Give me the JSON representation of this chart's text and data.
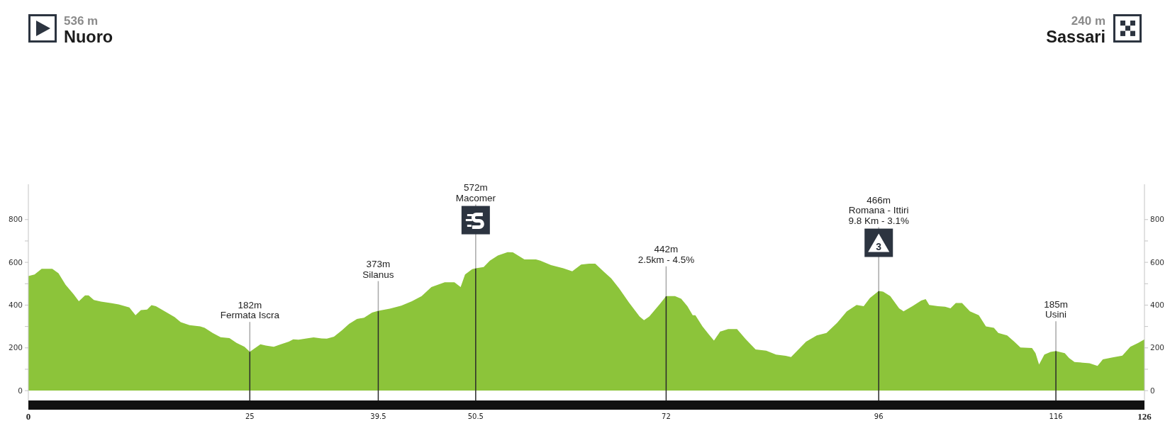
{
  "chart_data": {
    "type": "area",
    "x": [
      0,
      0.7,
      1.5,
      2.7,
      3.4,
      4.2,
      5.1,
      5.7,
      6.4,
      6.8,
      7.4,
      8.2,
      9.4,
      10.2,
      11.4,
      12.1,
      12.7,
      13.4,
      13.9,
      14.4,
      15.4,
      16.5,
      17.2,
      18.2,
      19.4,
      19.9,
      20.8,
      21.7,
      22.7,
      23.5,
      24.4,
      25,
      26.2,
      26.8,
      27.7,
      28.5,
      29.4,
      29.9,
      30.5,
      31.4,
      32.2,
      33.1,
      33.7,
      34.5,
      35.4,
      36.2,
      37.1,
      37.9,
      38.8,
      39.5,
      40.8,
      42.1,
      43.3,
      44.4,
      45.5,
      47,
      48.1,
      48.8,
      49.3,
      50.1,
      50.5,
      51.4,
      52.1,
      53,
      54.1,
      54.7,
      56,
      57.3,
      57.8,
      59,
      60.4,
      61.4,
      62.4,
      63.3,
      64,
      65,
      65.8,
      66.7,
      67.8,
      69,
      69.5,
      70.1,
      71.3,
      72,
      73,
      73.7,
      74.4,
      75,
      75.3,
      76.1,
      76.8,
      77.4,
      78.1,
      79,
      80,
      81,
      82.1,
      83.3,
      84.4,
      85.5,
      86.1,
      87.8,
      89,
      90.1,
      91.3,
      92.4,
      93.5,
      94.3,
      95,
      96,
      96.5,
      97.3,
      98.3,
      98.8,
      99.8,
      100.8,
      101.3,
      101.7,
      102.7,
      103.5,
      104.1,
      104.7,
      105.4,
      106.3,
      107.3,
      108.1,
      109,
      109.5,
      110.5,
      111.3,
      112,
      113.3,
      113.7,
      114.1,
      114.7,
      115.4,
      116,
      117,
      117.5,
      118.1,
      119.8,
      120.7,
      121.3,
      122.4,
      123.5,
      124.4,
      125.3,
      126
    ],
    "values": [
      536,
      543,
      570,
      570,
      549,
      495,
      451,
      418,
      445,
      445,
      424,
      416,
      409,
      403,
      389,
      353,
      377,
      379,
      400,
      395,
      371,
      344,
      320,
      306,
      300,
      294,
      270,
      250,
      246,
      223,
      205,
      182,
      217,
      211,
      205,
      217,
      229,
      240,
      238,
      244,
      249,
      244,
      243,
      252,
      282,
      312,
      335,
      341,
      365,
      373,
      383,
      397,
      418,
      442,
      484,
      507,
      507,
      484,
      543,
      568,
      572,
      578,
      608,
      632,
      648,
      647,
      614,
      614,
      608,
      587,
      572,
      558,
      590,
      594,
      594,
      555,
      525,
      478,
      412,
      347,
      329,
      347,
      406,
      442,
      442,
      430,
      395,
      353,
      353,
      300,
      264,
      234,
      276,
      288,
      288,
      240,
      193,
      187,
      169,
      163,
      157,
      229,
      258,
      270,
      317,
      371,
      401,
      395,
      433,
      466,
      463,
      442,
      385,
      371,
      395,
      421,
      428,
      401,
      395,
      392,
      385,
      410,
      410,
      371,
      353,
      300,
      294,
      270,
      258,
      229,
      202,
      199,
      175,
      122,
      169,
      181,
      185,
      175,
      152,
      134,
      128,
      116,
      146,
      155,
      164,
      205,
      223,
      240
    ],
    "color": "#8cc43a",
    "xlim": [
      0,
      126
    ],
    "xticks": [
      0,
      25,
      39.5,
      50.5,
      72,
      96,
      116,
      126
    ],
    "ylim": [
      -46,
      965
    ],
    "yticks": [
      0,
      {
        "value": 100,
        "label": null
      },
      200,
      {
        "value": 300,
        "label": null
      },
      400,
      {
        "value": 500,
        "label": null
      },
      600,
      {
        "value": 700,
        "label": null
      },
      800
    ],
    "y2lim": [
      -46,
      965
    ],
    "y2ticks": [
      0,
      {
        "value": 100,
        "label": null
      },
      200,
      {
        "value": 300,
        "label": null
      },
      400,
      {
        "value": 500,
        "label": null
      },
      600,
      {
        "value": 700,
        "label": null
      },
      800
    ],
    "ref_lines": [
      {
        "axis": "x",
        "value": 25,
        "color": "#2a2a2a"
      },
      {
        "axis": "x",
        "value": 39.5,
        "color": "#2a2a2a"
      },
      {
        "axis": "x",
        "value": 50.5,
        "color": "#2a2a2a"
      },
      {
        "axis": "x",
        "value": 72,
        "color": "#2a2a2a"
      },
      {
        "axis": "x",
        "value": 96,
        "color": "#2a2a2a"
      },
      {
        "axis": "x",
        "value": 116,
        "color": "#2a2a2a"
      }
    ],
    "annotations": [
      "536 m",
      "Nuoro",
      "240 m",
      "Sassari",
      "3",
      {
        "text": "182m\nFermata Iscra",
        "x": 25,
        "y": 182
      },
      {
        "text": "373m\nSilanus",
        "x": 39.5,
        "y": 373
      },
      {
        "text": "572m\nMacomer",
        "x": 50.5,
        "y": 572
      },
      {
        "text": "442m\n2.5km - 4.5%",
        "x": 72,
        "y": 442
      },
      {
        "text": "466m\nRomana - Ittiri\n9.8 Km - 3.1%",
        "x": 96,
        "y": 466
      },
      {
        "text": "185m\nUsini",
        "x": 116,
        "y": 185
      }
    ]
  }
}
